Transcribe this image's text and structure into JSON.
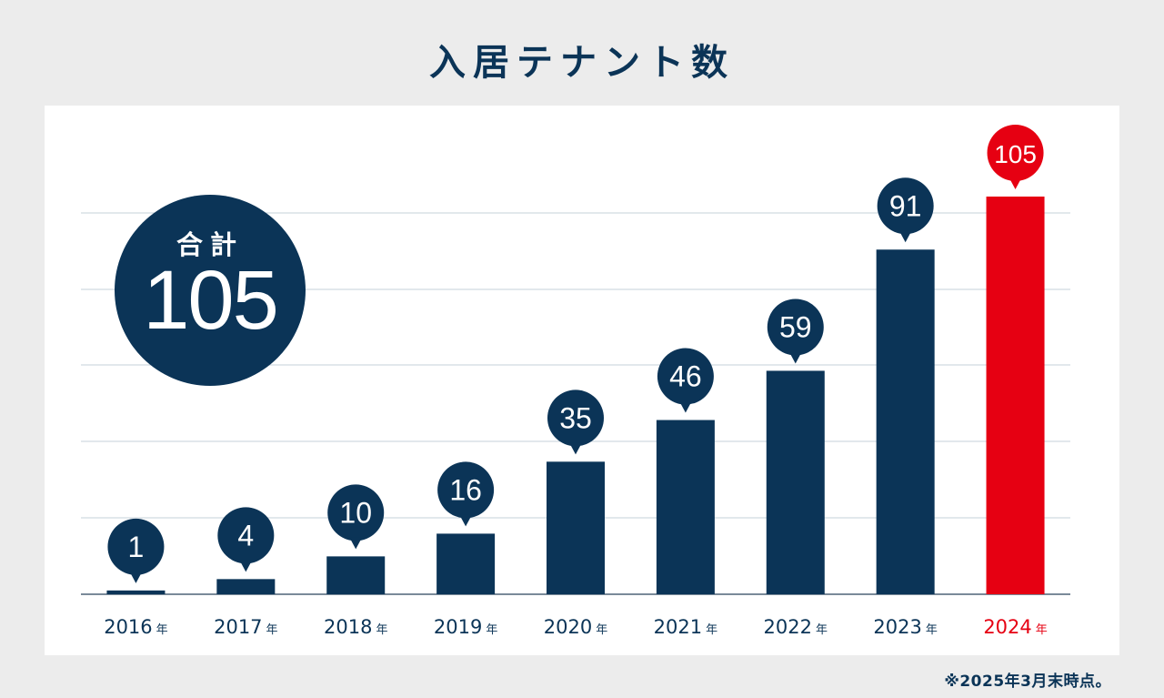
{
  "title": "入居テナント数",
  "footnote": "※2025年3月末時点。",
  "total": {
    "label": "合計",
    "value": "105"
  },
  "colors": {
    "bar": "#0b3457",
    "highlight": "#e60012",
    "grid": "#c5d0da",
    "axis": "#7a8a99",
    "background": "#ececec"
  },
  "chart_data": {
    "type": "bar",
    "categories": [
      "2016",
      "2017",
      "2018",
      "2019",
      "2020",
      "2021",
      "2022",
      "2023",
      "2024"
    ],
    "category_suffix": "年",
    "values": [
      1,
      4,
      10,
      16,
      35,
      46,
      59,
      91,
      105
    ],
    "highlight_index": 8,
    "ylim": [
      0,
      105
    ],
    "grid": true,
    "title": "",
    "xlabel": "",
    "ylabel": ""
  }
}
